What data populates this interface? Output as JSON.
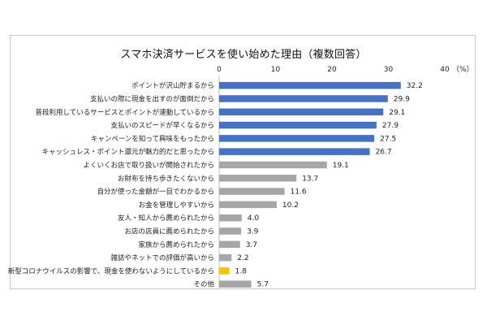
{
  "chart_data": {
    "type": "bar",
    "orientation": "horizontal",
    "title": "スマホ決済サービスを使い始めた理由（複数回答）",
    "unit_label": "（%）",
    "xlim": [
      0,
      40
    ],
    "ticks": [
      0,
      10,
      20,
      30,
      40
    ],
    "grid": false,
    "colors": {
      "highlight": "#4472c4",
      "neutral": "#a6a6a6",
      "covid": "#ffc000"
    },
    "categories": [
      "ポイントが沢山貯まるから",
      "支払いの際に現金を出すのが面倒だから",
      "普段利用しているサービスとポイントが連動しているから",
      "支払いのスピードが早くなるから",
      "キャンペーンを知って興味をもったから",
      "キャッシュレス・ポイント還元が魅力的だと思ったから",
      "よくいくお店で取り扱いが開始されたから",
      "お財布を持ち歩きたくないから",
      "自分が使った金額が一目でわかるから",
      "お金を管理しやすいから",
      "友人・知人から薦められたから",
      "お店の店員に薦められたから",
      "家族から薦められたから",
      "雑誌やネットでの評価が高いから",
      "新型コロナウイルスの影響で、現金を使わないようにしているから",
      "その他"
    ],
    "values": [
      32.2,
      29.9,
      29.1,
      27.9,
      27.5,
      26.7,
      19.1,
      13.7,
      11.6,
      10.2,
      4.0,
      3.9,
      3.7,
      2.2,
      1.8,
      5.7
    ],
    "value_labels": [
      "32.2",
      "29.9",
      "29.1",
      "27.9",
      "27.5",
      "26.7",
      "19.1",
      "13.7",
      "11.6",
      "10.2",
      "4.0",
      "3.9",
      "3.7",
      "2.2",
      "1.8",
      "5.7"
    ],
    "bar_colors": [
      "highlight",
      "highlight",
      "highlight",
      "highlight",
      "highlight",
      "highlight",
      "neutral",
      "neutral",
      "neutral",
      "neutral",
      "neutral",
      "neutral",
      "neutral",
      "neutral",
      "covid",
      "neutral"
    ]
  }
}
